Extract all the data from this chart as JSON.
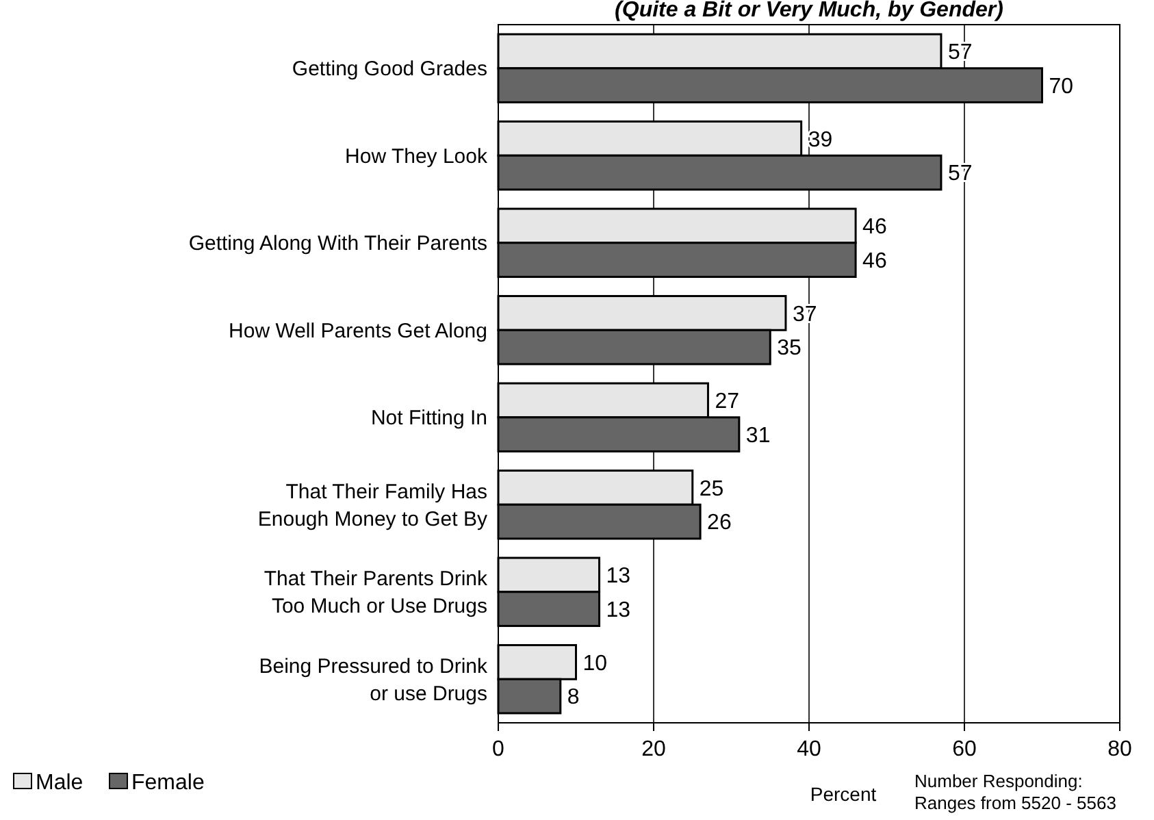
{
  "chart_data": {
    "type": "bar",
    "orientation": "horizontal",
    "title": "(Quite a Bit or Very Much, by Gender)",
    "xlabel": "Percent",
    "categories": [
      "Getting Good Grades",
      "How They Look",
      "Getting Along With Their Parents",
      "How Well Parents Get Along",
      "Not Fitting In",
      "That Their Family Has\nEnough Money to Get By",
      "That Their Parents Drink\nToo Much or Use Drugs",
      "Being Pressured to Drink\nor use Drugs"
    ],
    "series": [
      {
        "name": "Male",
        "color": "#e6e6e6",
        "values": [
          57,
          39,
          46,
          37,
          27,
          25,
          13,
          10
        ]
      },
      {
        "name": "Female",
        "color": "#666666",
        "values": [
          70,
          57,
          46,
          35,
          31,
          26,
          13,
          8
        ]
      }
    ],
    "xlim": [
      0,
      80
    ],
    "xticks": [
      0,
      20,
      40,
      60,
      80
    ],
    "grid": "x",
    "data_labels": true,
    "legend": "bottom left",
    "annotations": [
      "Number Responding:\nRanges from 5520 - 5563"
    ]
  }
}
